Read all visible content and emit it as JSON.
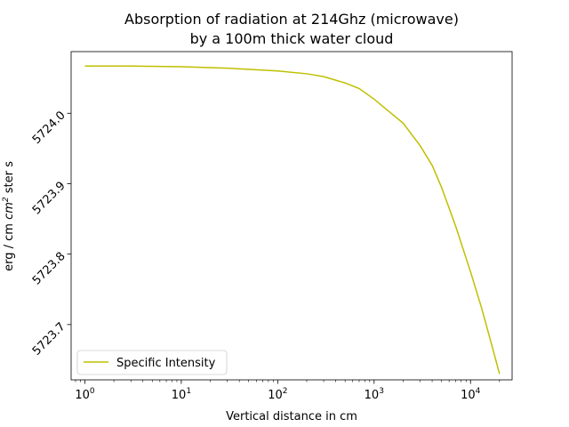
{
  "chart_data": {
    "type": "line",
    "title_line1": "Absorption of radiation at 214Ghz (microwave)",
    "title_line2": "by a 100m thick water cloud",
    "xlabel": "Vertical distance in cm",
    "ylabel_prefix": "erg / cm ",
    "ylabel_var": "cm",
    "ylabel_exp": "2",
    "ylabel_suffix": " ster s",
    "x_scale": "log",
    "xlim": [
      0.72,
      27000
    ],
    "ylim": [
      5723.6215,
      5724.0875
    ],
    "x_ticks": [
      {
        "value": 1,
        "base": "10",
        "exp": "0"
      },
      {
        "value": 10,
        "base": "10",
        "exp": "1"
      },
      {
        "value": 100,
        "base": "10",
        "exp": "2"
      },
      {
        "value": 1000,
        "base": "10",
        "exp": "3"
      },
      {
        "value": 10000,
        "base": "10",
        "exp": "4"
      }
    ],
    "y_ticks": [
      {
        "value": 5723.7,
        "label": "5723.7"
      },
      {
        "value": 5723.8,
        "label": "5723.8"
      },
      {
        "value": 5723.9,
        "label": "5723.9"
      },
      {
        "value": 5724.0,
        "label": "5724.0"
      }
    ],
    "series": [
      {
        "name": "Specific Intensity",
        "color": "#bfbf00",
        "x": [
          1,
          3,
          10,
          30,
          100,
          200,
          300,
          500,
          700,
          1000,
          1500,
          2000,
          3000,
          4000,
          5000,
          7000,
          10000,
          13000,
          16000,
          20000
        ],
        "y": [
          5724.067,
          5724.067,
          5724.066,
          5724.064,
          5724.06,
          5724.056,
          5724.052,
          5724.043,
          5724.035,
          5724.02,
          5724.0,
          5723.986,
          5723.954,
          5723.926,
          5723.895,
          5723.84,
          5723.775,
          5723.724,
          5723.679,
          5723.63
        ]
      }
    ],
    "legend": {
      "position": "lower-left"
    },
    "grid": false
  }
}
